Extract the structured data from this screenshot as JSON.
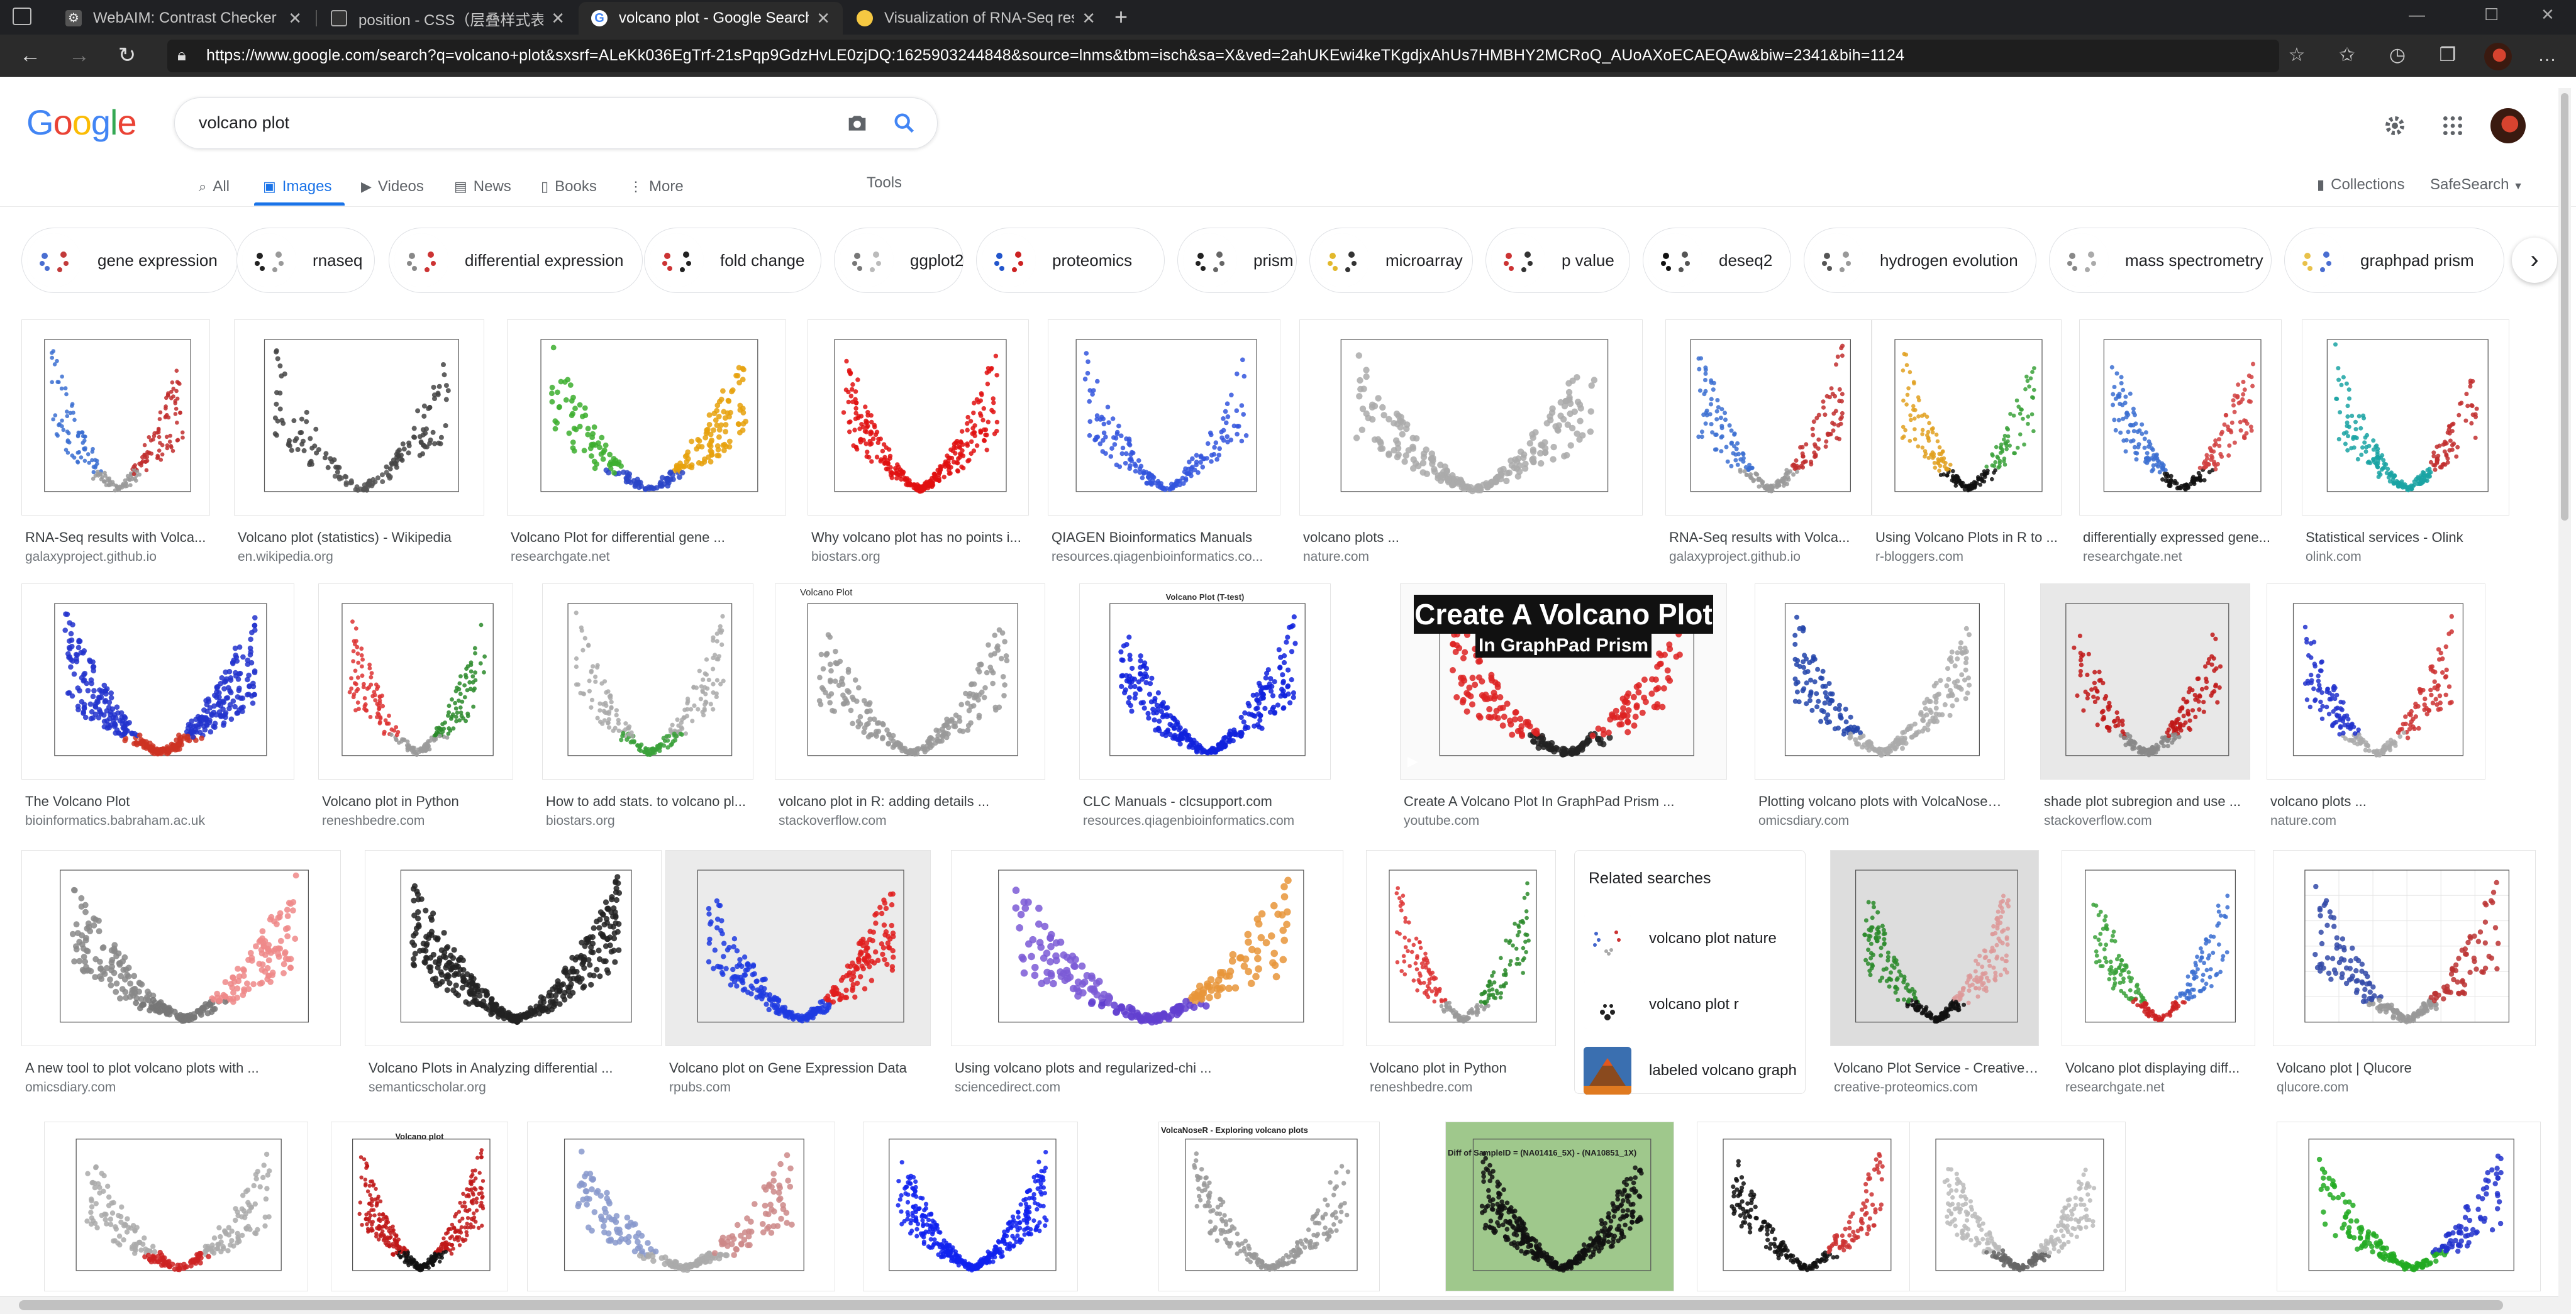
{
  "browser": {
    "tabs": [
      {
        "title": "WebAIM: Contrast Checker",
        "icon": "webaim-gear-icon",
        "active": false
      },
      {
        "title": "position - CSS（层叠样式表）| M",
        "icon": "mdn-icon",
        "active": false
      },
      {
        "title": "volcano plot - Google Search",
        "icon": "google-icon",
        "active": true
      },
      {
        "title": "Visualization of RNA-Seq results",
        "icon": "galaxy-icon",
        "active": false
      }
    ],
    "new_tab": "+",
    "url": "https://www.google.com/search?q=volcano+plot&sxsrf=ALeKk036EgTrf-21sPqp9GdzHvLE0zjDQ:1625903244848&source=lnms&tbm=isch&sa=X&ved=2ahUKEwi4keTKgdjxAhUs7HMBHY2MCRoQ_AUoAXoECAEQAw&biw=2341&bih=1124"
  },
  "google": {
    "logo": "Google",
    "query": "volcano plot",
    "nav": [
      {
        "label": "All",
        "icon": "search-icon"
      },
      {
        "label": "Images",
        "icon": "image-icon"
      },
      {
        "label": "Videos",
        "icon": "video-icon"
      },
      {
        "label": "News",
        "icon": "news-icon"
      },
      {
        "label": "Books",
        "icon": "book-icon"
      },
      {
        "label": "More",
        "icon": "more-vert-icon"
      }
    ],
    "tools": "Tools",
    "collections": "Collections",
    "safesearch": "SafeSearch",
    "chips": [
      "gene expression",
      "rnaseq",
      "differential expression",
      "fold change",
      "ggplot2",
      "proteomics",
      "prism",
      "microarray",
      "p value",
      "deseq2",
      "hydrogen evolution",
      "mass spectrometry",
      "graphpad prism"
    ],
    "results": {
      "row1": [
        {
          "title": "RNA-Seq results with Volca...",
          "source": "galaxyproject.github.io"
        },
        {
          "title": "Volcano plot (statistics) - Wikipedia",
          "source": "en.wikipedia.org"
        },
        {
          "title": "Volcano Plot for differential gene ...",
          "source": "researchgate.net"
        },
        {
          "title": "Why volcano plot has no points i...",
          "source": "biostars.org"
        },
        {
          "title": "QIAGEN Bioinformatics Manuals",
          "source": "resources.qiagenbioinformatics.co..."
        },
        {
          "title": "volcano plots ...",
          "source": "nature.com"
        },
        {
          "title": "RNA-Seq results with Volca...",
          "source": "galaxyproject.github.io"
        },
        {
          "title": "Using Volcano Plots in R to ...",
          "source": "r-bloggers.com"
        },
        {
          "title": "differentially expressed gene...",
          "source": "researchgate.net"
        },
        {
          "title": "Statistical services - Olink",
          "source": "olink.com"
        }
      ],
      "row2": [
        {
          "title": "The Volcano Plot",
          "source": "bioinformatics.babraham.ac.uk"
        },
        {
          "title": "Volcano plot in Python",
          "source": "reneshbedre.com"
        },
        {
          "title": "How to add stats. to volcano pl...",
          "source": "biostars.org"
        },
        {
          "title": "volcano plot in R: adding details ...",
          "source": "stackoverflow.com"
        },
        {
          "title": "CLC Manuals - clcsupport.com",
          "source": "resources.qiagenbioinformatics.com"
        },
        {
          "title": "Create A Volcano Plot In GraphPad Prism ...",
          "source": "youtube.com"
        },
        {
          "title": "Plotting volcano plots with VolcaNoseR ...",
          "source": "omicsdiary.com"
        },
        {
          "title": "shade plot subregion and use ...",
          "source": "stackoverflow.com"
        },
        {
          "title": "volcano plots ...",
          "source": "nature.com"
        }
      ],
      "row3": [
        {
          "title": "A new tool to plot volcano plots with ...",
          "source": "omicsdiary.com"
        },
        {
          "title": "Volcano Plots in Analyzing differential ...",
          "source": "semanticscholar.org"
        },
        {
          "title": "Volcano plot on Gene Expression Data",
          "source": "rpubs.com"
        },
        {
          "title": "Using volcano plots and regularized-chi ...",
          "source": "sciencedirect.com"
        },
        {
          "title": "Volcano plot in Python",
          "source": "reneshbedre.com"
        },
        {
          "title": "Volcano Plot Service - Creative ...",
          "source": "creative-proteomics.com"
        },
        {
          "title": "Volcano plot displaying diff...",
          "source": "researchgate.net"
        },
        {
          "title": "Volcano plot | Qlucore",
          "source": "qlucore.com"
        }
      ]
    },
    "image_texts": {
      "video_title_1": "Create A Volcano Plot",
      "video_title_2": "In GraphPad Prism",
      "volcano_plot": "Volcano plot",
      "volcano_plot_t": "Volcano Plot (T-test)",
      "color_specific": "Volcano Plot",
      "volcanoser": "VolcaNoseR - Exploring volcano plots",
      "chromosome": "Diff of SampleID = (NA01416_5X) - (NA10851_1X)"
    },
    "related": {
      "heading": "Related searches",
      "items": [
        "volcano plot nature",
        "volcano plot r",
        "labeled volcano graph"
      ]
    }
  }
}
